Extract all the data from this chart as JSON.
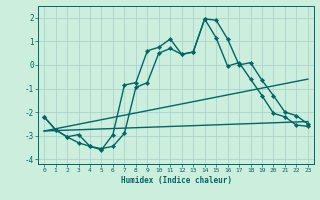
{
  "xlabel": "Humidex (Indice chaleur)",
  "background_color": "#cceedd",
  "line_color": "#006666",
  "grid_color": "#aacccc",
  "xlim": [
    -0.5,
    23.5
  ],
  "ylim": [
    -4.2,
    2.5
  ],
  "yticks": [
    -4,
    -3,
    -2,
    -1,
    0,
    1,
    2
  ],
  "xticks": [
    0,
    1,
    2,
    3,
    4,
    5,
    6,
    7,
    8,
    9,
    10,
    11,
    12,
    13,
    14,
    15,
    16,
    17,
    18,
    19,
    20,
    21,
    22,
    23
  ],
  "line1_x": [
    0,
    1,
    2,
    3,
    4,
    5,
    6,
    7,
    8,
    9,
    10,
    11,
    12,
    13,
    14,
    15,
    16,
    17,
    18,
    19,
    20,
    21,
    22,
    23
  ],
  "line1_y": [
    -2.2,
    -2.75,
    -3.05,
    -3.3,
    -3.45,
    -3.6,
    -2.95,
    -0.85,
    -0.75,
    0.6,
    0.75,
    1.1,
    0.45,
    0.55,
    1.95,
    1.9,
    1.1,
    0.0,
    0.1,
    -0.65,
    -1.3,
    -2.0,
    -2.15,
    -2.5
  ],
  "line2_x": [
    0,
    23
  ],
  "line2_y": [
    -2.8,
    -0.6
  ],
  "line3_x": [
    0,
    23
  ],
  "line3_y": [
    -2.8,
    -2.4
  ],
  "line4_x": [
    0,
    1,
    2,
    3,
    4,
    5,
    6,
    7,
    8,
    9,
    10,
    11,
    12,
    13,
    14,
    15,
    16,
    17,
    18,
    19,
    20,
    21,
    22,
    23
  ],
  "line4_y": [
    -2.2,
    -2.75,
    -3.05,
    -2.95,
    -3.45,
    -3.55,
    -3.45,
    -2.9,
    -0.95,
    -0.75,
    0.5,
    0.7,
    0.45,
    0.55,
    1.95,
    1.15,
    -0.05,
    0.1,
    -0.6,
    -1.3,
    -2.05,
    -2.2,
    -2.55,
    -2.6
  ]
}
